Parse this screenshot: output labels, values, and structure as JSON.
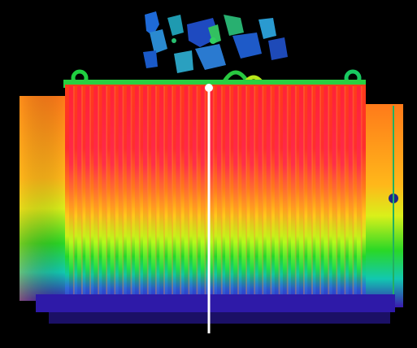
{
  "image": {
    "subject": "thermal-image-of-transformer",
    "colors": {
      "background": "#000000",
      "hot": "#ff2a2a",
      "warm": "#ff8a1a",
      "mid": "#d8ff1a",
      "cool": "#18e020",
      "cold": "#2b1fb8",
      "probe_line": "#ffffff"
    }
  }
}
